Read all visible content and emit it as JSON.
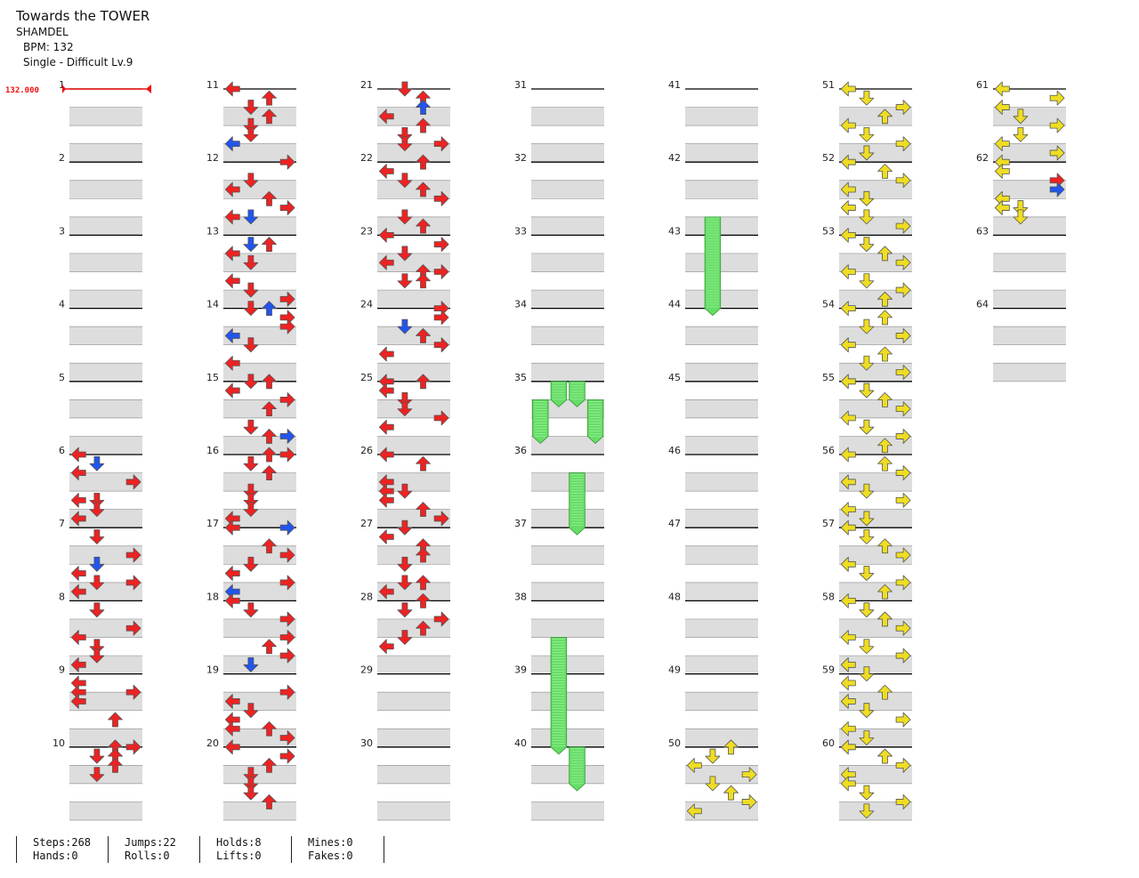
{
  "song": {
    "title": "Towards the TOWER",
    "artist": "SHAMDEL",
    "bpm_label": "BPM: 132",
    "difficulty_label": "Single - Difficult Lv.9",
    "bpm_marker": "132.000"
  },
  "stats": [
    {
      "top": "Steps:268",
      "bottom": "Hands:0"
    },
    {
      "top": "Jumps:22",
      "bottom": "Rolls:0"
    },
    {
      "top": "Holds:8",
      "bottom": "Lifts:0"
    },
    {
      "top": "Mines:0",
      "bottom": "Fakes:0"
    }
  ],
  "measure_numbers": [
    "1",
    "2",
    "3",
    "4",
    "5",
    "6",
    "7",
    "8",
    "9",
    "10",
    "11",
    "12",
    "13",
    "14",
    "15",
    "16",
    "17",
    "18",
    "19",
    "20",
    "21",
    "22",
    "23",
    "24",
    "25",
    "26",
    "27",
    "28",
    "29",
    "30",
    "31",
    "32",
    "33",
    "34",
    "35",
    "36",
    "37",
    "38",
    "39",
    "40",
    "41",
    "42",
    "43",
    "44",
    "45",
    "46",
    "47",
    "48",
    "49",
    "50",
    "51",
    "52",
    "53",
    "54",
    "55",
    "56",
    "57",
    "58",
    "59",
    "60",
    "61",
    "62",
    "63",
    "64"
  ],
  "colors": {
    "quarter": "#ee2222",
    "eighth": "#2255ee",
    "sixteenth": "#eedd22",
    "hold": "#66dd66",
    "shade": "#dddddd",
    "beat_line": "#999999",
    "measure_line": "#000000"
  },
  "lanes": [
    "left",
    "down",
    "up",
    "right"
  ],
  "notes": [
    [
      6,
      0,
      0,
      "q"
    ],
    [
      6,
      0.5,
      1,
      "e"
    ],
    [
      6,
      1,
      0,
      "q"
    ],
    [
      6,
      1.5,
      3,
      "q"
    ],
    [
      6,
      2.5,
      0,
      "q"
    ],
    [
      6,
      2.5,
      1,
      "q"
    ],
    [
      6,
      3,
      1,
      "q"
    ],
    [
      6,
      3.5,
      0,
      "q"
    ],
    [
      7,
      0.5,
      1,
      "q"
    ],
    [
      7,
      1.5,
      3,
      "q"
    ],
    [
      7,
      2,
      1,
      "e"
    ],
    [
      7,
      2.5,
      0,
      "q"
    ],
    [
      7,
      3,
      1,
      "q"
    ],
    [
      7,
      3,
      3,
      "q"
    ],
    [
      7,
      3.5,
      0,
      "q"
    ],
    [
      8,
      0.5,
      1,
      "q"
    ],
    [
      8,
      1.5,
      3,
      "q"
    ],
    [
      8,
      2,
      0,
      "q"
    ],
    [
      8,
      2.5,
      1,
      "q"
    ],
    [
      8,
      3,
      1,
      "q"
    ],
    [
      8,
      3.5,
      0,
      "q"
    ],
    [
      9,
      0.5,
      0,
      "q"
    ],
    [
      9,
      1,
      0,
      "q"
    ],
    [
      9,
      1,
      3,
      "q"
    ],
    [
      9,
      1.5,
      0,
      "q"
    ],
    [
      9,
      2.5,
      2,
      "q"
    ],
    [
      10,
      0,
      2,
      "q"
    ],
    [
      10,
      0,
      3,
      "q"
    ],
    [
      10,
      0.5,
      1,
      "q"
    ],
    [
      10,
      0.5,
      2,
      "q"
    ],
    [
      10,
      1,
      2,
      "q"
    ],
    [
      10,
      1.5,
      1,
      "q"
    ],
    [
      11,
      0,
      0,
      "q"
    ],
    [
      11,
      0.5,
      2,
      "q"
    ],
    [
      11,
      1,
      1,
      "q"
    ],
    [
      11,
      1.5,
      2,
      "q"
    ],
    [
      11,
      2,
      1,
      "q"
    ],
    [
      11,
      2.5,
      1,
      "q"
    ],
    [
      11,
      3,
      0,
      "e"
    ],
    [
      12,
      0,
      3,
      "q"
    ],
    [
      12,
      1,
      1,
      "q"
    ],
    [
      12,
      1.5,
      0,
      "q"
    ],
    [
      12,
      2,
      2,
      "q"
    ],
    [
      12,
      2.5,
      3,
      "q"
    ],
    [
      12,
      3,
      0,
      "q"
    ],
    [
      12,
      3,
      1,
      "e"
    ],
    [
      13,
      0.5,
      1,
      "e"
    ],
    [
      13,
      0.5,
      2,
      "q"
    ],
    [
      13,
      1,
      0,
      "q"
    ],
    [
      13,
      1.5,
      1,
      "q"
    ],
    [
      13,
      2.5,
      0,
      "q"
    ],
    [
      13,
      3,
      1,
      "q"
    ],
    [
      13,
      3.5,
      3,
      "q"
    ],
    [
      14,
      0,
      1,
      "q"
    ],
    [
      14,
      0,
      2,
      "e"
    ],
    [
      14,
      0.5,
      3,
      "q"
    ],
    [
      14,
      1,
      3,
      "q"
    ],
    [
      14,
      1.5,
      0,
      "e"
    ],
    [
      14,
      2,
      1,
      "q"
    ],
    [
      14,
      3,
      0,
      "q"
    ],
    [
      15,
      0,
      1,
      "q"
    ],
    [
      15,
      0,
      2,
      "q"
    ],
    [
      15,
      0.5,
      0,
      "q"
    ],
    [
      15,
      1,
      3,
      "q"
    ],
    [
      15,
      1.5,
      2,
      "q"
    ],
    [
      15,
      2.5,
      1,
      "q"
    ],
    [
      15,
      3,
      2,
      "q"
    ],
    [
      15,
      3,
      3,
      "e"
    ],
    [
      16,
      0,
      2,
      "q"
    ],
    [
      16,
      0,
      3,
      "q"
    ],
    [
      16,
      0.5,
      1,
      "q"
    ],
    [
      16,
      1,
      2,
      "q"
    ],
    [
      16,
      2,
      1,
      "q"
    ],
    [
      16,
      2.5,
      1,
      "q"
    ],
    [
      16,
      3,
      1,
      "q"
    ],
    [
      16,
      3.5,
      0,
      "q"
    ],
    [
      17,
      0,
      0,
      "q"
    ],
    [
      17,
      0,
      3,
      "e"
    ],
    [
      17,
      1,
      2,
      "q"
    ],
    [
      17,
      1.5,
      3,
      "q"
    ],
    [
      17,
      2,
      1,
      "q"
    ],
    [
      17,
      2.5,
      0,
      "q"
    ],
    [
      17,
      3,
      3,
      "q"
    ],
    [
      17,
      3.5,
      0,
      "e"
    ],
    [
      18,
      0,
      0,
      "q"
    ],
    [
      18,
      0.5,
      1,
      "q"
    ],
    [
      18,
      1,
      3,
      "q"
    ],
    [
      18,
      2,
      3,
      "q"
    ],
    [
      18,
      2.5,
      2,
      "q"
    ],
    [
      18,
      3,
      3,
      "q"
    ],
    [
      18,
      3.5,
      1,
      "e"
    ],
    [
      19,
      1,
      3,
      "q"
    ],
    [
      19,
      1.5,
      0,
      "q"
    ],
    [
      19,
      2,
      1,
      "q"
    ],
    [
      19,
      2.5,
      0,
      "q"
    ],
    [
      19,
      3,
      0,
      "q"
    ],
    [
      19,
      3,
      2,
      "q"
    ],
    [
      19,
      3.5,
      3,
      "q"
    ],
    [
      20,
      0,
      0,
      "q"
    ],
    [
      20,
      0.5,
      3,
      "q"
    ],
    [
      20,
      1,
      2,
      "q"
    ],
    [
      20,
      1.5,
      1,
      "q"
    ],
    [
      20,
      2,
      1,
      "q"
    ],
    [
      20,
      2.5,
      1,
      "q"
    ],
    [
      20,
      3,
      2,
      "q"
    ],
    [
      21,
      0,
      1,
      "q"
    ],
    [
      21,
      0.5,
      2,
      "q"
    ],
    [
      21,
      1,
      2,
      "e"
    ],
    [
      21,
      1.5,
      0,
      "q"
    ],
    [
      21,
      2,
      2,
      "q"
    ],
    [
      21,
      2.5,
      1,
      "q"
    ],
    [
      21,
      3,
      1,
      "q"
    ],
    [
      21,
      3,
      3,
      "q"
    ],
    [
      22,
      0,
      2,
      "q"
    ],
    [
      22,
      0.5,
      0,
      "q"
    ],
    [
      22,
      1,
      1,
      "q"
    ],
    [
      22,
      1.5,
      2,
      "q"
    ],
    [
      22,
      2,
      3,
      "q"
    ],
    [
      22,
      3,
      1,
      "q"
    ],
    [
      22,
      3.5,
      2,
      "q"
    ],
    [
      23,
      0,
      0,
      "q"
    ],
    [
      23,
      0.5,
      3,
      "q"
    ],
    [
      23,
      1,
      1,
      "q"
    ],
    [
      23,
      1.5,
      0,
      "q"
    ],
    [
      23,
      2,
      3,
      "q"
    ],
    [
      23,
      2,
      2,
      "q"
    ],
    [
      23,
      2.5,
      1,
      "q"
    ],
    [
      23,
      2.5,
      2,
      "q"
    ],
    [
      24,
      0,
      3,
      "q"
    ],
    [
      24,
      0.5,
      3,
      "q"
    ],
    [
      24,
      1,
      1,
      "e"
    ],
    [
      24,
      1.5,
      2,
      "q"
    ],
    [
      24,
      2,
      3,
      "q"
    ],
    [
      24,
      2.5,
      0,
      "q"
    ],
    [
      25,
      0,
      0,
      "q"
    ],
    [
      25,
      0,
      2,
      "q"
    ],
    [
      25,
      0.5,
      0,
      "q"
    ],
    [
      25,
      1,
      1,
      "q"
    ],
    [
      25,
      1.5,
      1,
      "q"
    ],
    [
      25,
      2,
      3,
      "q"
    ],
    [
      25,
      2.5,
      0,
      "q"
    ],
    [
      26,
      0,
      0,
      "q"
    ],
    [
      26,
      0.5,
      2,
      "q"
    ],
    [
      26,
      1.5,
      0,
      "q"
    ],
    [
      26,
      2,
      0,
      "q"
    ],
    [
      26,
      2,
      1,
      "q"
    ],
    [
      26,
      2.5,
      0,
      "q"
    ],
    [
      26,
      3,
      2,
      "q"
    ],
    [
      26,
      3.5,
      3,
      "q"
    ],
    [
      27,
      0,
      1,
      "q"
    ],
    [
      27,
      0.5,
      0,
      "q"
    ],
    [
      27,
      1,
      2,
      "q"
    ],
    [
      27,
      1.5,
      2,
      "q"
    ],
    [
      27,
      2,
      1,
      "q"
    ],
    [
      27,
      3,
      1,
      "q"
    ],
    [
      27,
      3,
      2,
      "q"
    ],
    [
      27,
      3.5,
      0,
      "q"
    ],
    [
      28,
      0,
      2,
      "q"
    ],
    [
      28,
      0.5,
      1,
      "q"
    ],
    [
      28,
      1,
      3,
      "q"
    ],
    [
      28,
      1.5,
      2,
      "q"
    ],
    [
      28,
      2,
      1,
      "q"
    ],
    [
      28,
      2.5,
      0,
      "q"
    ]
  ],
  "holds": [
    [
      35,
      0,
      1,
      1,
      0
    ],
    [
      35,
      0,
      2,
      1,
      0
    ],
    [
      35,
      1,
      0,
      2,
      0
    ],
    [
      35,
      1,
      3,
      2,
      0
    ],
    [
      36,
      1,
      2,
      3,
      2
    ],
    [
      38,
      2,
      1,
      6,
      0
    ],
    [
      40,
      0,
      2,
      2,
      0
    ],
    [
      42,
      3,
      1,
      5,
      2
    ]
  ],
  "yellow_notes": [
    [
      50,
      0,
      2,
      "s"
    ],
    [
      50,
      0.5,
      1,
      "s"
    ],
    [
      50,
      1,
      0,
      "s"
    ],
    [
      50,
      1.5,
      3,
      "s"
    ],
    [
      50,
      2,
      1,
      "s"
    ],
    [
      50,
      2.5,
      2,
      "s"
    ],
    [
      50,
      3,
      3,
      "s"
    ],
    [
      50,
      3.5,
      0,
      "s"
    ],
    [
      51,
      0,
      0,
      "s"
    ],
    [
      51,
      0.5,
      1,
      "s"
    ],
    [
      51,
      1,
      3,
      "s"
    ],
    [
      51,
      1.5,
      2,
      "s"
    ],
    [
      51,
      2,
      0,
      "s"
    ],
    [
      51,
      2.5,
      1,
      "s"
    ],
    [
      51,
      3,
      3,
      "s"
    ],
    [
      51,
      3.5,
      1,
      "s"
    ],
    [
      52,
      0,
      0,
      "s"
    ],
    [
      52,
      0.5,
      2,
      "s"
    ],
    [
      52,
      1,
      3,
      "s"
    ],
    [
      52,
      1.5,
      0,
      "s"
    ],
    [
      52,
      2,
      1,
      "s"
    ],
    [
      52,
      2.5,
      0,
      "s"
    ],
    [
      52,
      3,
      1,
      "s"
    ],
    [
      52,
      3.5,
      3,
      "s"
    ],
    [
      53,
      0,
      0,
      "s"
    ],
    [
      53,
      0.5,
      1,
      "s"
    ],
    [
      53,
      1,
      2,
      "s"
    ],
    [
      53,
      1.5,
      3,
      "s"
    ],
    [
      53,
      2,
      0,
      "s"
    ],
    [
      53,
      2.5,
      1,
      "s"
    ],
    [
      53,
      3,
      3,
      "s"
    ],
    [
      53,
      3.5,
      2,
      "s"
    ],
    [
      54,
      0,
      0,
      "s"
    ],
    [
      54,
      0.5,
      2,
      "s"
    ],
    [
      54,
      1,
      1,
      "s"
    ],
    [
      54,
      1.5,
      3,
      "s"
    ],
    [
      54,
      2,
      0,
      "s"
    ],
    [
      54,
      2.5,
      2,
      "s"
    ],
    [
      54,
      3,
      1,
      "s"
    ],
    [
      54,
      3.5,
      3,
      "s"
    ],
    [
      55,
      0,
      0,
      "s"
    ],
    [
      55,
      0.5,
      1,
      "s"
    ],
    [
      55,
      1,
      2,
      "s"
    ],
    [
      55,
      1.5,
      3,
      "s"
    ],
    [
      55,
      2,
      0,
      "s"
    ],
    [
      55,
      2.5,
      1,
      "s"
    ],
    [
      55,
      3,
      3,
      "s"
    ],
    [
      55,
      3.5,
      2,
      "s"
    ],
    [
      56,
      0,
      0,
      "s"
    ],
    [
      56,
      0.5,
      2,
      "s"
    ],
    [
      56,
      1,
      3,
      "s"
    ],
    [
      56,
      1.5,
      0,
      "s"
    ],
    [
      56,
      2,
      1,
      "s"
    ],
    [
      56,
      2.5,
      3,
      "s"
    ],
    [
      56,
      3,
      0,
      "s"
    ],
    [
      56,
      3.5,
      1,
      "s"
    ],
    [
      57,
      0,
      0,
      "s"
    ],
    [
      57,
      0.5,
      1,
      "s"
    ],
    [
      57,
      1,
      2,
      "s"
    ],
    [
      57,
      1.5,
      3,
      "s"
    ],
    [
      57,
      2,
      0,
      "s"
    ],
    [
      57,
      2.5,
      1,
      "s"
    ],
    [
      57,
      3,
      3,
      "s"
    ],
    [
      57,
      3.5,
      2,
      "s"
    ],
    [
      58,
      0,
      0,
      "s"
    ],
    [
      58,
      0.5,
      1,
      "s"
    ],
    [
      58,
      1,
      2,
      "s"
    ],
    [
      58,
      1.5,
      3,
      "s"
    ],
    [
      58,
      2,
      0,
      "s"
    ],
    [
      58,
      2.5,
      1,
      "s"
    ],
    [
      58,
      3,
      3,
      "s"
    ],
    [
      58,
      3.5,
      0,
      "s"
    ],
    [
      59,
      0,
      1,
      "s"
    ],
    [
      59,
      0.5,
      0,
      "s"
    ],
    [
      59,
      1,
      2,
      "s"
    ],
    [
      59,
      1.5,
      0,
      "s"
    ],
    [
      59,
      2,
      1,
      "s"
    ],
    [
      59,
      2.5,
      3,
      "s"
    ],
    [
      59,
      3,
      0,
      "s"
    ],
    [
      59,
      3.5,
      1,
      "s"
    ],
    [
      60,
      0,
      0,
      "s"
    ],
    [
      60,
      0.5,
      2,
      "s"
    ],
    [
      60,
      1,
      3,
      "s"
    ],
    [
      60,
      1.5,
      0,
      "s"
    ],
    [
      60,
      2,
      0,
      "s"
    ],
    [
      60,
      2.5,
      1,
      "s"
    ],
    [
      60,
      3,
      3,
      "s"
    ],
    [
      60,
      3.5,
      1,
      "s"
    ],
    [
      61,
      0,
      0,
      "s"
    ],
    [
      61,
      0.5,
      3,
      "s"
    ],
    [
      61,
      1,
      0,
      "s"
    ],
    [
      61,
      1.5,
      1,
      "s"
    ],
    [
      61,
      2,
      3,
      "s"
    ],
    [
      61,
      2.5,
      1,
      "s"
    ],
    [
      61,
      3,
      0,
      "s"
    ],
    [
      61,
      3.5,
      3,
      "s"
    ],
    [
      62,
      0,
      0,
      "s"
    ],
    [
      62,
      0.5,
      0,
      "s"
    ],
    [
      62,
      1,
      3,
      "q"
    ],
    [
      62,
      1.5,
      3,
      "e"
    ],
    [
      62,
      2,
      0,
      "s"
    ],
    [
      62,
      2.5,
      0,
      "s"
    ],
    [
      62,
      2.5,
      1,
      "s"
    ],
    [
      62,
      3,
      1,
      "s"
    ]
  ]
}
